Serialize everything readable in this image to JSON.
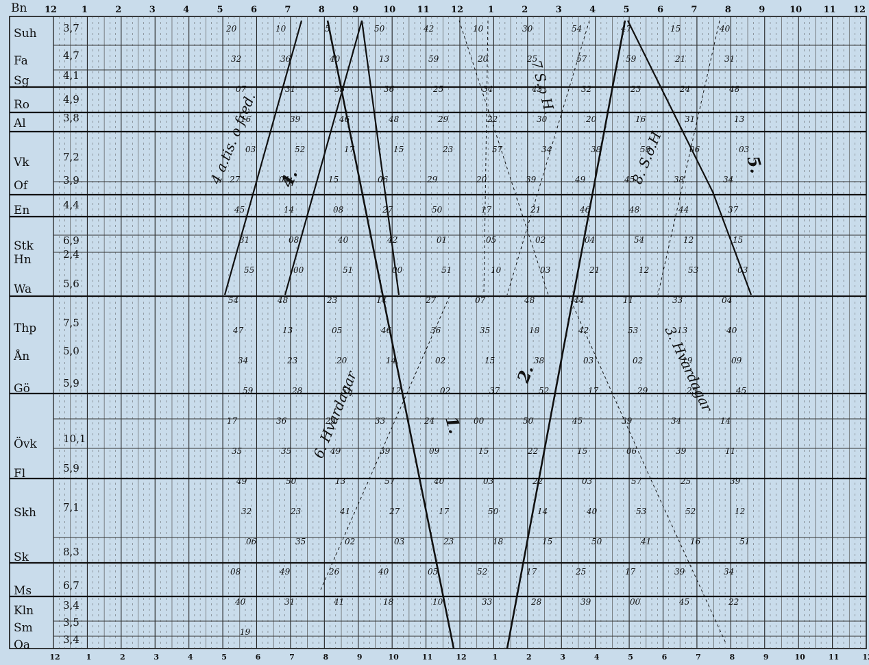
{
  "header_label": "Bn",
  "top_hours": [
    "12",
    "1",
    "2",
    "3",
    "4",
    "5",
    "6",
    "7",
    "8",
    "9",
    "10",
    "11",
    "12",
    "1",
    "2",
    "3",
    "4",
    "5",
    "6",
    "7",
    "8",
    "9",
    "10",
    "11",
    "12"
  ],
  "bottom_hours": [
    "12",
    "1",
    "2",
    "3",
    "4",
    "5",
    "6",
    "7",
    "8",
    "9",
    "10",
    "11",
    "12",
    "1",
    "2",
    "3",
    "4",
    "5",
    "6",
    "7",
    "8",
    "9",
    "10",
    "11",
    "12"
  ],
  "stations": [
    "Suh",
    "Fa",
    "Sg",
    "Ro",
    "Al",
    "Vk",
    "Of",
    "En",
    "Stk",
    "Hn",
    "Wa",
    "Thp",
    "Ån",
    "Gö",
    "Övk",
    "Fl",
    "Skh",
    "Sk",
    "Ms",
    "Kln",
    "Sm",
    "Oa"
  ],
  "distances": [
    "3,7",
    "4,7",
    "4,1",
    "4,9",
    "3,8",
    "7,2",
    "3,9",
    "4,4",
    "6,9",
    "2,4",
    "5,6",
    "7,5",
    "5,0",
    "5,9",
    "10,1",
    "5,9",
    "7,1",
    "8,3",
    "6,7",
    "3,4",
    "3,5",
    "3,4"
  ],
  "train_labels": [
    "4 a.tis. o fred.",
    "4.",
    "6. Hvardagar",
    "1.",
    "2.",
    "7 S.o H.",
    "8. S.o.H.",
    "3. Hvardagar",
    "5."
  ],
  "time_labels": [
    "20",
    "10",
    "5",
    "50",
    "42",
    "10",
    "30",
    "54",
    "47",
    "15",
    "40",
    "32",
    "36",
    "40",
    "13",
    "59",
    "20",
    "25",
    "57",
    "59",
    "21",
    "31",
    "07",
    "31",
    "35",
    "36",
    "25",
    "34",
    "43",
    "32",
    "23",
    "24",
    "48",
    "16",
    "39",
    "46",
    "48",
    "29",
    "22",
    "30",
    "20",
    "16",
    "31",
    "13",
    "03",
    "52",
    "17",
    "15",
    "23",
    "57",
    "34",
    "38",
    "58",
    "06",
    "03",
    "27",
    "04",
    "15",
    "06",
    "29",
    "20",
    "39",
    "49",
    "45",
    "38",
    "34",
    "45",
    "14",
    "08",
    "27",
    "50",
    "17",
    "21",
    "46",
    "48",
    "44",
    "37",
    "31",
    "08",
    "40",
    "42",
    "01",
    "05",
    "02",
    "04",
    "54",
    "12",
    "15",
    "55",
    "00",
    "51",
    "00",
    "51",
    "10",
    "03",
    "21",
    "12",
    "53",
    "03",
    "54",
    "48",
    "23",
    "14",
    "27",
    "07",
    "48",
    "44",
    "11",
    "33",
    "04",
    "47",
    "13",
    "05",
    "46",
    "36",
    "35",
    "18",
    "42",
    "53",
    "13",
    "40",
    "34",
    "23",
    "20",
    "14",
    "02",
    "15",
    "38",
    "03",
    "02",
    "19",
    "09",
    "59",
    "28",
    "51",
    "12",
    "02",
    "37",
    "52",
    "17",
    "29",
    "23",
    "45",
    "17",
    "36",
    "23",
    "33",
    "24",
    "00",
    "50",
    "45",
    "39",
    "34",
    "14",
    "35",
    "35",
    "49",
    "39",
    "09",
    "15",
    "22",
    "15",
    "06",
    "39",
    "11",
    "49",
    "50",
    "13",
    "57",
    "40",
    "03",
    "22",
    "03",
    "57",
    "25",
    "39",
    "32",
    "23",
    "41",
    "27",
    "17",
    "50",
    "14",
    "40",
    "53",
    "52",
    "12",
    "06",
    "35",
    "02",
    "03",
    "23",
    "18",
    "15",
    "50",
    "41",
    "16",
    "51",
    "08",
    "49",
    "26",
    "40",
    "05",
    "52",
    "17",
    "25",
    "17",
    "39",
    "34",
    "40",
    "31",
    "41",
    "18",
    "10",
    "33",
    "28",
    "39",
    "00",
    "45",
    "22",
    "19"
  ]
}
